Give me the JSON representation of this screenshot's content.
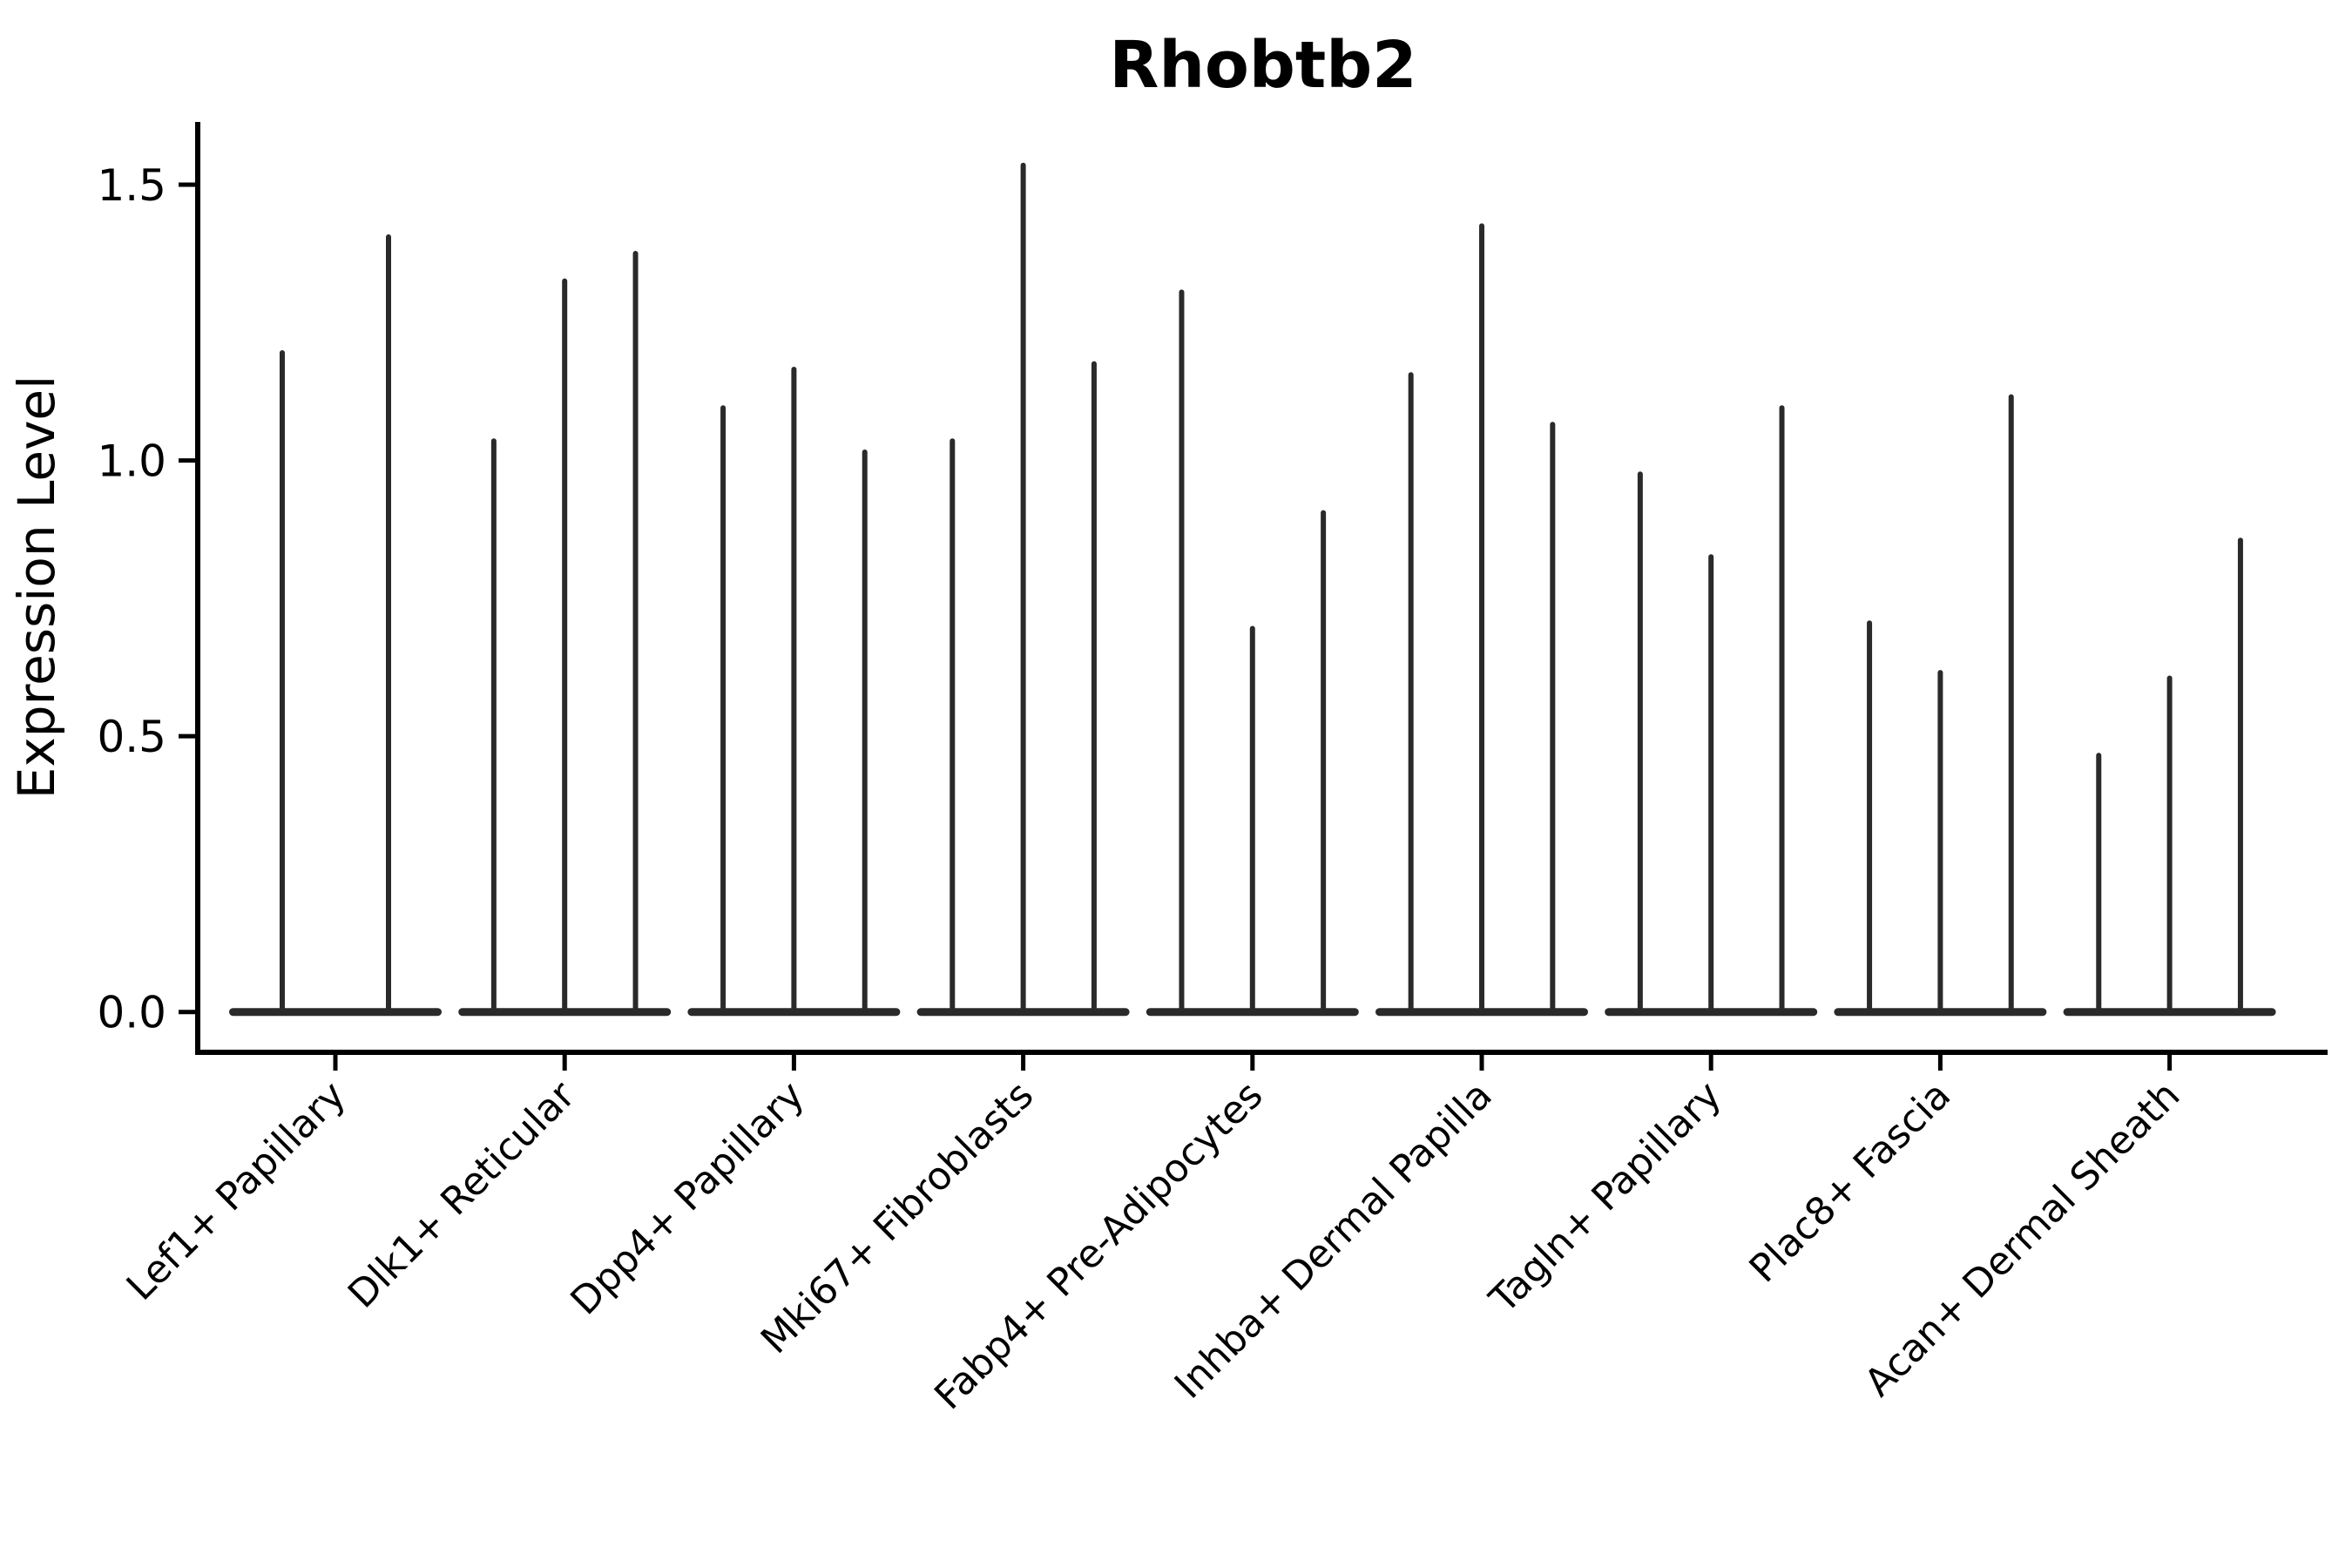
{
  "title": "Rhobtb2",
  "axes": {
    "ylabel": "Expression Level",
    "xlabel": "",
    "ytick_labels": [
      "0.0",
      "0.5",
      "1.0",
      "1.5"
    ]
  },
  "colors": {
    "violin": "#2a2a2a",
    "axis": "#000000",
    "background": "#ffffff"
  },
  "chart_data": {
    "type": "violin",
    "title": "Rhobtb2",
    "ylabel": "Expression Level",
    "xlabel": "",
    "ylim": [
      -0.073,
      1.614
    ],
    "yticks": [
      0.0,
      0.5,
      1.0,
      1.5
    ],
    "grid": false,
    "legend": "none",
    "description": "Needle-like violins: nearly all density lies at expression 0 (wide flat base) with a thin tail rising to each violin's maximum expression value.",
    "categories": [
      "Lef1+ Papillary",
      "Dlk1+ Reticular",
      "Dpp4+ Papillary",
      "Mki67+ Fibroblasts",
      "Fabp4+ Pre-Adipocytes",
      "Inhba+ Dermal Papilla",
      "Tagln+ Papillary",
      "Plac8+ Fascia",
      "Acan+ Dermal Sheath"
    ],
    "series": [
      {
        "name": "violin_max_expression_per_group",
        "groups": [
          [
            1.2,
            1.41
          ],
          [
            1.04,
            1.33,
            1.38
          ],
          [
            1.1,
            1.17,
            1.02
          ],
          [
            1.04,
            1.54,
            1.18
          ],
          [
            1.31,
            0.7,
            0.91
          ],
          [
            1.16,
            1.43,
            1.07
          ],
          [
            0.98,
            0.83,
            1.1
          ],
          [
            0.71,
            0.62,
            1.12
          ],
          [
            0.47,
            0.61,
            0.86
          ]
        ]
      }
    ],
    "baseline_value": 0.0
  }
}
